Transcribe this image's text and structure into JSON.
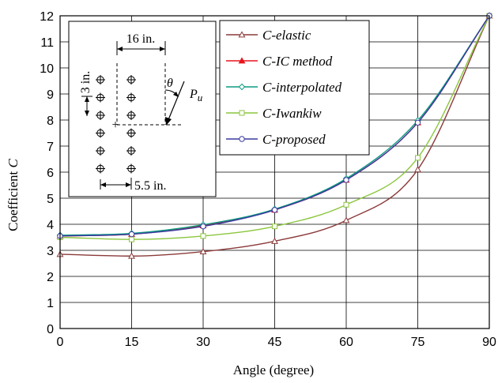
{
  "chart_data": {
    "type": "line",
    "xlabel": "Angle (degree)",
    "ylabel_prefix": "Coefficient ",
    "ylabel_var": "C",
    "xlim": [
      0,
      90
    ],
    "ylim": [
      0,
      12
    ],
    "xticks": [
      "0",
      "15",
      "30",
      "45",
      "60",
      "75",
      "90"
    ],
    "yticks": [
      "0",
      "1",
      "2",
      "3",
      "4",
      "5",
      "6",
      "7",
      "8",
      "9",
      "10",
      "11",
      "12"
    ],
    "grid": true,
    "legend_position": "top-right",
    "x": [
      0,
      15,
      30,
      45,
      60,
      75,
      90
    ],
    "series": [
      {
        "name": "C-elastic",
        "marker": "triangle-open",
        "color": "#8b3a3a",
        "values": [
          2.85,
          2.78,
          2.95,
          3.35,
          4.15,
          6.1,
          12.0
        ]
      },
      {
        "name": "C-IC method",
        "marker": "triangle-filled",
        "color": "#e8141e",
        "values": [
          3.55,
          3.62,
          3.95,
          4.55,
          5.7,
          7.9,
          12.0
        ]
      },
      {
        "name": "C-interpolated",
        "marker": "diamond",
        "color": "#0a9a80",
        "values": [
          3.58,
          3.65,
          3.98,
          4.58,
          5.75,
          7.98,
          12.0
        ]
      },
      {
        "name": "C-Iwankiw",
        "marker": "square-open",
        "color": "#8cc63f",
        "values": [
          3.5,
          3.42,
          3.55,
          3.92,
          4.75,
          6.55,
          12.0
        ]
      },
      {
        "name": "C-proposed",
        "marker": "circle-open",
        "color": "#3a3aa0",
        "values": [
          3.55,
          3.62,
          3.92,
          4.55,
          5.7,
          7.9,
          12.0
        ]
      }
    ],
    "inset": {
      "dim_top": "16 in.",
      "dim_left": "3 in.",
      "dim_bottom": "5.5 in.",
      "angle_symbol": "θ",
      "load_symbol": "P",
      "load_subscript": "u",
      "origin_marker": "+"
    }
  }
}
